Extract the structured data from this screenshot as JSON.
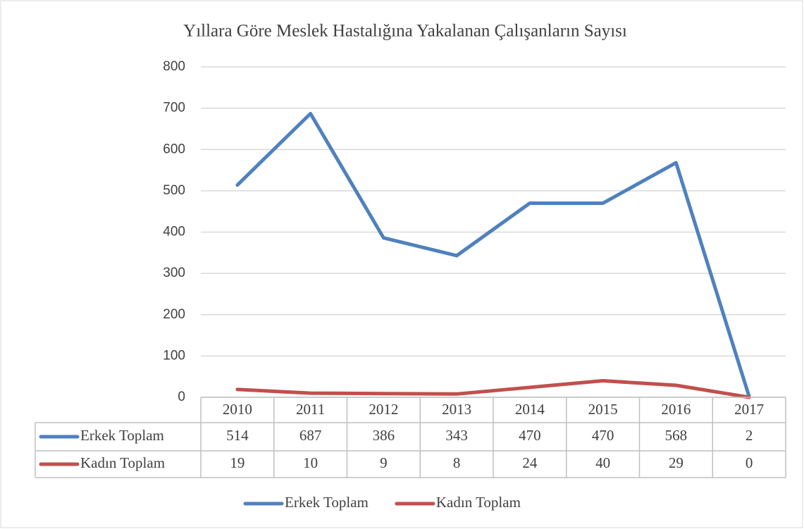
{
  "chart_data": {
    "type": "line",
    "title": "Yıllara  Göre Meslek Hastalığına Yakalanan Çalışanların Sayısı",
    "categories": [
      "2010",
      "2011",
      "2012",
      "2013",
      "2014",
      "2015",
      "2016",
      "2017"
    ],
    "series": [
      {
        "name": "Erkek Toplam",
        "color": "#4f81bd",
        "values": [
          514,
          687,
          386,
          343,
          470,
          470,
          568,
          2
        ]
      },
      {
        "name": "Kadın Toplam",
        "color": "#c0504d",
        "values": [
          19,
          10,
          9,
          8,
          24,
          40,
          29,
          0
        ]
      }
    ],
    "ylim": [
      0,
      800
    ],
    "yticks": [
      0,
      100,
      200,
      300,
      400,
      500,
      600,
      700,
      800
    ],
    "grid": true,
    "legend": "bottom",
    "data_table": true
  }
}
